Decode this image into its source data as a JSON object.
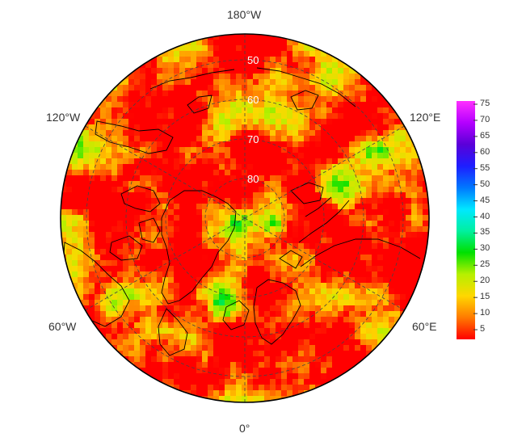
{
  "map": {
    "projection": "north-polar-stereographic",
    "longitude_labels": [
      "180°W",
      "120°E",
      "60°E",
      "0°",
      "60°W",
      "120°W"
    ],
    "latitude_labels": [
      "50",
      "60",
      "70",
      "80"
    ],
    "colors": {
      "land_outline": "#000000",
      "graticule": "#555555",
      "border": "#000000"
    }
  },
  "colorbar": {
    "min": 2,
    "max": 76,
    "ticks": [
      "75",
      "70",
      "65",
      "60",
      "55",
      "50",
      "45",
      "40",
      "35",
      "30",
      "25",
      "20",
      "15",
      "10",
      "5"
    ],
    "palette": [
      "#ff0000",
      "#ff7a00",
      "#ffd700",
      "#b6f000",
      "#00e000",
      "#00f0a0",
      "#00e8ff",
      "#0078ff",
      "#1e1eff",
      "#5a00d8",
      "#b400ff",
      "#ff30ff"
    ]
  }
}
